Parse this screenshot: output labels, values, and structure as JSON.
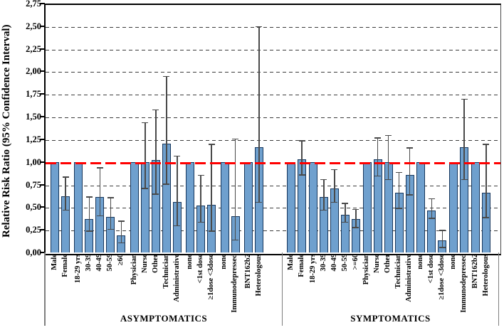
{
  "colors": {
    "bar_fill": "#6fa0ce",
    "bar_border": "#16365c",
    "error_bar": "#4a4a4a",
    "reference_line": "#ff0000",
    "gridline": "#3c3c3c"
  },
  "y_axis": {
    "title": "Relative Risk Ratio (95% Confidence Interval)",
    "tick_labels": [
      "0,00",
      "0,25",
      "0,50",
      "0,75",
      "1,00",
      "1,25",
      "1,50",
      "1,75",
      "2,00",
      "2,25",
      "2,50",
      "2,75"
    ],
    "min": 0,
    "max": 2.75,
    "step": 0.25
  },
  "chart_data": {
    "type": "bar",
    "title": "",
    "ylabel": "Relative Risk Ratio (95% Confidence Interval)",
    "ylim": [
      0,
      2.75
    ],
    "grid": "dashed-horizontal",
    "reference_line_y": 1.0,
    "panels": [
      {
        "label": "ASYMPTOMATICS",
        "clusters": [
          {
            "bars": [
              {
                "label": "Male",
                "value": 1.0,
                "ci_low": null,
                "ci_high": null
              },
              {
                "label": "Female",
                "value": 0.62,
                "ci_low": 0.46,
                "ci_high": 0.84
              }
            ]
          },
          {
            "bars": [
              {
                "label": "18-29 yrs",
                "value": 1.0,
                "ci_low": null,
                "ci_high": null
              },
              {
                "label": "30-39",
                "value": 0.37,
                "ci_low": 0.23,
                "ci_high": 0.62
              },
              {
                "label": "40-49",
                "value": 0.61,
                "ci_low": 0.4,
                "ci_high": 0.94
              },
              {
                "label": "50-59",
                "value": 0.39,
                "ci_low": 0.25,
                "ci_high": 0.61
              },
              {
                "label": "≥60",
                "value": 0.19,
                "ci_low": 0.1,
                "ci_high": 0.35
              }
            ]
          },
          {
            "bars": [
              {
                "label": "Physician",
                "value": 1.0,
                "ci_low": null,
                "ci_high": null
              },
              {
                "label": "Nurse",
                "value": 1.0,
                "ci_low": 0.7,
                "ci_high": 1.44
              },
              {
                "label": "Other",
                "value": 1.02,
                "ci_low": 0.64,
                "ci_high": 1.58
              },
              {
                "label": "Technician",
                "value": 1.2,
                "ci_low": 0.75,
                "ci_high": 1.95
              },
              {
                "label": "Administrative",
                "value": 0.56,
                "ci_low": 0.29,
                "ci_high": 1.07
              }
            ]
          },
          {
            "bars": [
              {
                "label": "none",
                "value": 1.0,
                "ci_low": null,
                "ci_high": null
              },
              {
                "label": "<1st dose",
                "value": 0.52,
                "ci_low": 0.33,
                "ci_high": 0.86
              },
              {
                "label": "≥1dose <3dose",
                "value": 0.53,
                "ci_low": 0.23,
                "ci_high": 1.2
              }
            ]
          },
          {
            "bars": [
              {
                "label": "none",
                "value": 1.0,
                "ci_low": null,
                "ci_high": null
              },
              {
                "label": "Immunodepressed",
                "value": 0.4,
                "ci_low": 0.13,
                "ci_high": 1.26
              }
            ]
          },
          {
            "bars": [
              {
                "label": "BNT162b2",
                "value": 1.0,
                "ci_low": null,
                "ci_high": null
              },
              {
                "label": "Heterologous",
                "value": 1.16,
                "ci_low": 0.55,
                "ci_high": 2.5
              }
            ]
          }
        ]
      },
      {
        "label": "SYMPTOMATICS",
        "clusters": [
          {
            "bars": [
              {
                "label": "Male",
                "value": 1.0,
                "ci_low": null,
                "ci_high": null
              },
              {
                "label": "Female",
                "value": 1.03,
                "ci_low": 0.85,
                "ci_high": 1.24
              }
            ]
          },
          {
            "bars": [
              {
                "label": "18-29 yrs",
                "value": 1.0,
                "ci_low": null,
                "ci_high": null
              },
              {
                "label": "30-39",
                "value": 0.61,
                "ci_low": 0.46,
                "ci_high": 0.81
              },
              {
                "label": "40-49",
                "value": 0.71,
                "ci_low": 0.55,
                "ci_high": 0.92
              },
              {
                "label": "50-59",
                "value": 0.42,
                "ci_low": 0.33,
                "ci_high": 0.55
              },
              {
                "label": ">=60",
                "value": 0.37,
                "ci_low": 0.27,
                "ci_high": 0.48
              }
            ]
          },
          {
            "bars": [
              {
                "label": "Physician",
                "value": 1.0,
                "ci_low": null,
                "ci_high": null
              },
              {
                "label": "Nurse",
                "value": 1.03,
                "ci_low": 0.84,
                "ci_high": 1.27
              },
              {
                "label": "Other",
                "value": 1.0,
                "ci_low": 0.8,
                "ci_high": 1.3
              },
              {
                "label": "Technician",
                "value": 0.66,
                "ci_low": 0.48,
                "ci_high": 0.89
              },
              {
                "label": "Administrative",
                "value": 0.86,
                "ci_low": 0.63,
                "ci_high": 1.16
              }
            ]
          },
          {
            "bars": [
              {
                "label": "none",
                "value": 1.0,
                "ci_low": null,
                "ci_high": null
              },
              {
                "label": "<1st dose",
                "value": 0.46,
                "ci_low": 0.37,
                "ci_high": 0.6
              },
              {
                "label": "≥1dose <3dose",
                "value": 0.13,
                "ci_low": 0.05,
                "ci_high": 0.25
              }
            ]
          },
          {
            "bars": [
              {
                "label": "none",
                "value": 1.0,
                "ci_low": null,
                "ci_high": null
              },
              {
                "label": "Immunodepressed",
                "value": 1.16,
                "ci_low": 0.8,
                "ci_high": 1.7
              }
            ]
          },
          {
            "bars": [
              {
                "label": "BNT162b2",
                "value": 1.0,
                "ci_low": null,
                "ci_high": null
              },
              {
                "label": "Heterologous",
                "value": 0.66,
                "ci_low": 0.38,
                "ci_high": 1.2
              }
            ]
          }
        ]
      }
    ]
  }
}
